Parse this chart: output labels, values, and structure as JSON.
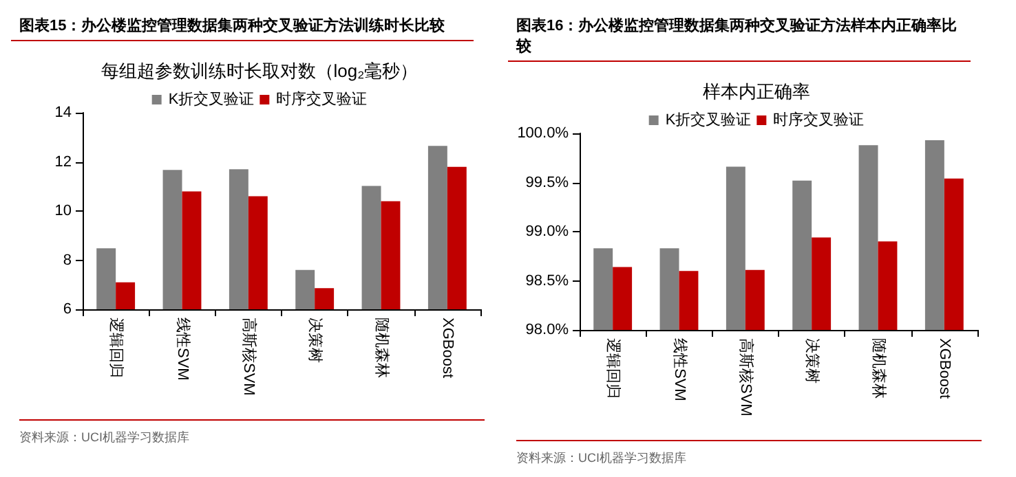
{
  "chart_data": [
    {
      "type": "bar",
      "title": "图表15：办公楼监控管理数据集两种交叉验证方法训练时长比较",
      "subtitle": "每组超参数训练时长取对数（log₂毫秒）",
      "categories": [
        "逻辑回归",
        "线性SVM",
        "高斯核SVM",
        "决策树",
        "随机森林",
        "XGBoost"
      ],
      "series": [
        {
          "name": "K折交叉验证",
          "color": "#808080",
          "values": [
            8.48,
            11.67,
            11.7,
            7.6,
            11.02,
            12.65
          ]
        },
        {
          "name": "时序交叉验证",
          "color": "#c00000",
          "values": [
            7.1,
            10.8,
            10.6,
            6.86,
            10.4,
            11.8
          ]
        }
      ],
      "ylim": [
        6,
        14
      ],
      "yticks": [
        6,
        8,
        10,
        12,
        14
      ],
      "grid": false,
      "legend": "top",
      "annotations": [
        "资料来源：UCI机器学习数据库"
      ]
    },
    {
      "type": "bar",
      "title": "图表16：办公楼监控管理数据集两种交叉验证方法样本内正确率比较",
      "subtitle": "样本内正确率",
      "categories": [
        "逻辑回归",
        "线性SVM",
        "高斯核SVM",
        "决策树",
        "随机森林",
        "XGBoost"
      ],
      "series": [
        {
          "name": "K折交叉验证",
          "color": "#808080",
          "values": [
            98.83,
            98.83,
            99.66,
            99.52,
            99.88,
            99.93
          ]
        },
        {
          "name": "时序交叉验证",
          "color": "#c00000",
          "values": [
            98.64,
            98.6,
            98.61,
            98.94,
            98.9,
            99.54
          ]
        }
      ],
      "ylim": [
        98,
        100
      ],
      "yticks": [
        {
          "value": 98,
          "label": "98.0%"
        },
        {
          "value": 98.5,
          "label": "98.5%"
        },
        {
          "value": 99,
          "label": "99.0%"
        },
        {
          "value": 99.5,
          "label": "99.5%"
        },
        {
          "value": 100,
          "label": "100.0%"
        }
      ],
      "grid": false,
      "legend": "top",
      "annotations": [
        "资料来源：UCI机器学习数据库"
      ]
    }
  ]
}
